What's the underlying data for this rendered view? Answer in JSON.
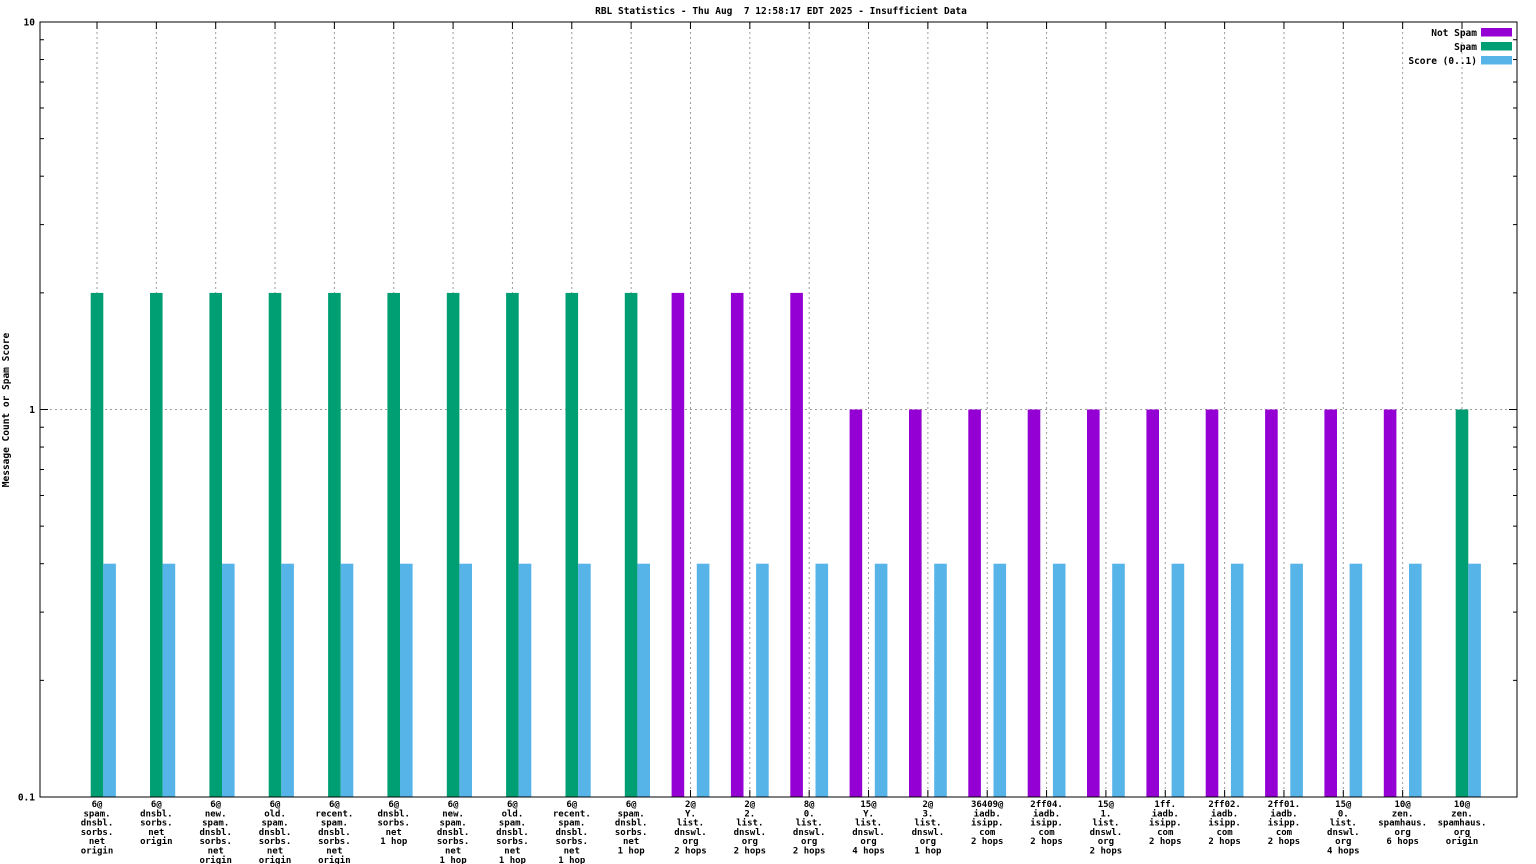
{
  "chart_data": {
    "type": "bar",
    "title": "RBL Statistics - Thu Aug  7 12:58:17 EDT 2025 - Insufficient Data",
    "ylabel": "Message Count or Spam Score",
    "xlabel": "",
    "y_scale": "log",
    "ylim": [
      0.1,
      10
    ],
    "y_ticks": [
      {
        "value": 10,
        "label": "10"
      },
      {
        "value": 1,
        "label": "1"
      },
      {
        "value": 0.1,
        "label": "0.1"
      }
    ],
    "y_minor_ticks": [
      0.2,
      0.3,
      0.4,
      0.5,
      0.6,
      0.7,
      0.8,
      0.9,
      2,
      3,
      4,
      5,
      6,
      7,
      8,
      9
    ],
    "grid": true,
    "legend_position": "top-right",
    "background_color": "#ffffff",
    "grid_color": "#9a9a9a",
    "border_color": "#000000",
    "categories": [
      [
        "6@",
        "spam.",
        "dnsbl.",
        "sorbs.",
        "net",
        "origin"
      ],
      [
        "6@",
        "dnsbl.",
        "sorbs.",
        "net",
        "origin"
      ],
      [
        "6@",
        "new.",
        "spam.",
        "dnsbl.",
        "sorbs.",
        "net",
        "origin"
      ],
      [
        "6@",
        "old.",
        "spam.",
        "dnsbl.",
        "sorbs.",
        "net",
        "origin"
      ],
      [
        "6@",
        "recent.",
        "spam.",
        "dnsbl.",
        "sorbs.",
        "net",
        "origin"
      ],
      [
        "6@",
        "dnsbl.",
        "sorbs.",
        "net",
        "1 hop"
      ],
      [
        "6@",
        "new.",
        "spam.",
        "dnsbl.",
        "sorbs.",
        "net",
        "1 hop"
      ],
      [
        "6@",
        "old.",
        "spam.",
        "dnsbl.",
        "sorbs.",
        "net",
        "1 hop"
      ],
      [
        "6@",
        "recent.",
        "spam.",
        "dnsbl.",
        "sorbs.",
        "net",
        "1 hop"
      ],
      [
        "6@",
        "spam.",
        "dnsbl.",
        "sorbs.",
        "net",
        "1 hop"
      ],
      [
        "2@",
        "Y.",
        "list.",
        "dnswl.",
        "org",
        "2 hops"
      ],
      [
        "2@",
        "2.",
        "list.",
        "dnswl.",
        "org",
        "2 hops"
      ],
      [
        "8@",
        "0.",
        "list.",
        "dnswl.",
        "org",
        "2 hops"
      ],
      [
        "15@",
        "Y.",
        "list.",
        "dnswl.",
        "org",
        "4 hops"
      ],
      [
        "2@",
        "3.",
        "list.",
        "dnswl.",
        "org",
        "1 hop"
      ],
      [
        "36409@",
        "iadb.",
        "isipp.",
        "com",
        "2 hops"
      ],
      [
        "2ff04.",
        "iadb.",
        "isipp.",
        "com",
        "2 hops"
      ],
      [
        "15@",
        "1.",
        "list.",
        "dnswl.",
        "org",
        "2 hops"
      ],
      [
        "1ff.",
        "iadb.",
        "isipp.",
        "com",
        "2 hops"
      ],
      [
        "2ff02.",
        "iadb.",
        "isipp.",
        "com",
        "2 hops"
      ],
      [
        "2ff01.",
        "iadb.",
        "isipp.",
        "com",
        "2 hops"
      ],
      [
        "15@",
        "0.",
        "list.",
        "dnswl.",
        "org",
        "4 hops"
      ],
      [
        "10@",
        "zen.",
        "spamhaus.",
        "org",
        "6 hops"
      ],
      [
        "10@",
        "zen.",
        "spamhaus.",
        "org",
        "origin"
      ]
    ],
    "series": [
      {
        "name": "Not Spam",
        "color": "#9400d3",
        "values": [
          0,
          0,
          0,
          0,
          0,
          0,
          0,
          0,
          0,
          0,
          2,
          2,
          2,
          1,
          1,
          1,
          1,
          1,
          1,
          1,
          1,
          1,
          1,
          0
        ]
      },
      {
        "name": "Spam",
        "color": "#009e73",
        "values": [
          2,
          2,
          2,
          2,
          2,
          2,
          2,
          2,
          2,
          2,
          0,
          0,
          0,
          0,
          0,
          0,
          0,
          0,
          0,
          0,
          0,
          0,
          0,
          1
        ]
      },
      {
        "name": "Score (0..1)",
        "color": "#56b4e9",
        "values": [
          0.4,
          0.4,
          0.4,
          0.4,
          0.4,
          0.4,
          0.4,
          0.4,
          0.4,
          0.4,
          0.4,
          0.4,
          0.4,
          0.4,
          0.4,
          0.4,
          0.4,
          0.4,
          0.4,
          0.4,
          0.4,
          0.4,
          0.4,
          0.4
        ]
      }
    ]
  }
}
